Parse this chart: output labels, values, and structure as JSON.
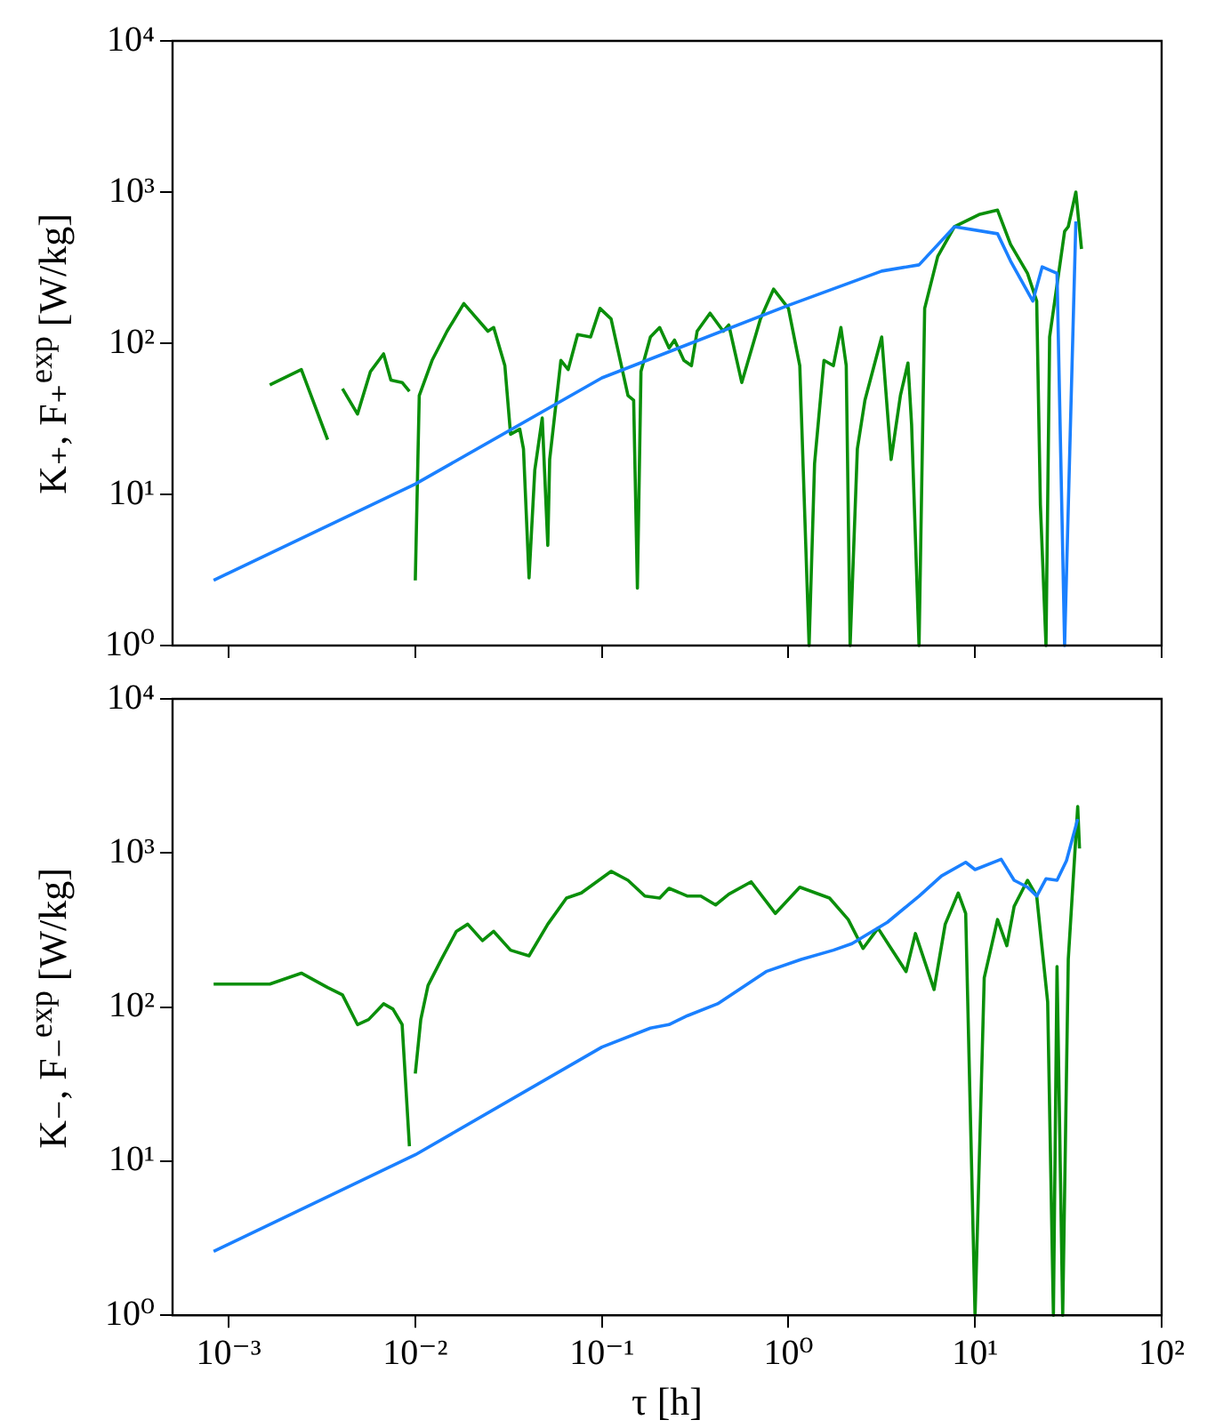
{
  "chart_data": [
    {
      "type": "line",
      "ylabel": "K₊, F₊$^{exp}$ [W/kg]",
      "log": "xy",
      "tick_labels": "y",
      "xlim": [
        0.0005,
        100
      ],
      "xticks": [
        {
          "value": 0.001,
          "label": null
        },
        {
          "value": 0.01,
          "label": null
        },
        {
          "value": 0.1,
          "label": null
        },
        {
          "value": 1,
          "label": null
        },
        {
          "value": 10,
          "label": null
        },
        {
          "value": 100,
          "label": null
        }
      ],
      "ylim": [
        1,
        10000
      ],
      "yticks": [
        {
          "value": 1,
          "label": "10⁰"
        },
        {
          "value": 10,
          "label": "10¹"
        },
        {
          "value": 100,
          "label": "10²"
        },
        {
          "value": 1000,
          "label": "10³"
        },
        {
          "value": 10000,
          "label": "10⁴"
        }
      ],
      "series": [
        {
          "color": "#1a80ff",
          "x": [
            0.00083,
            0.01,
            0.1,
            1,
            3.16,
            5.01,
            7.76,
            13.2,
            15.5,
            20.4,
            22.9,
            27.5,
            30.2,
            34.7
          ],
          "values": [
            2.7,
            11.7,
            59,
            178,
            300,
            330,
            590,
            530,
            350,
            190,
            320,
            290,
            1,
            640
          ]
        },
        {
          "color": "#0a8f0a",
          "x": [
            0.00166,
            0.00245,
            0.00339,
            0.0037,
            0.00407,
            0.0049,
            0.00575,
            0.00676,
            0.0074,
            0.0085,
            0.0093,
            0.0097,
            0.01,
            0.0105,
            0.0123,
            0.0148,
            0.0182,
            0.0245,
            0.0263,
            0.0302,
            0.0324,
            0.0363,
            0.038,
            0.0407,
            0.0437,
            0.0479,
            0.0513,
            0.0525,
            0.0603,
            0.066,
            0.0741,
            0.087,
            0.0977,
            0.112,
            0.138,
            0.148,
            0.155,
            0.162,
            0.182,
            0.204,
            0.229,
            0.245,
            0.275,
            0.302,
            0.324,
            0.38,
            0.447,
            0.479,
            0.562,
            0.708,
            0.832,
            1,
            1.15,
            1.29,
            1.38,
            1.55,
            1.74,
            1.91,
            2.04,
            2.14,
            2.34,
            2.57,
            3.16,
            3.55,
            3.98,
            4.37,
            4.57,
            5.01,
            5.37,
            6.31,
            7.76,
            10.5,
            13.2,
            15.5,
            19.1,
            21.4,
            22.4,
            24,
            25.1,
            30.2,
            31.6,
            34.7,
            37.2
          ],
          "values": [
            53,
            67,
            23,
            null,
            50,
            34,
            65,
            85,
            57,
            55,
            48,
            null,
            2.7,
            45,
            77,
            120,
            183,
            120,
            127,
            71,
            25,
            27,
            20,
            2.8,
            14.5,
            32,
            4.6,
            17,
            77,
            67,
            114,
            110,
            170,
            145,
            45,
            42,
            2.4,
            65,
            110,
            127,
            93,
            105,
            77,
            71,
            120,
            158,
            120,
            132,
            55,
            145,
            228,
            170,
            71,
            1,
            16,
            77,
            71,
            127,
            71,
            1,
            20,
            42,
            110,
            17,
            45,
            74,
            29,
            1,
            170,
            375,
            590,
            710,
            760,
            450,
            290,
            190,
            8.5,
            1,
            110,
            550,
            590,
            1000,
            420
          ]
        }
      ]
    },
    {
      "type": "line",
      "xlabel": "τ [h]",
      "ylabel": "K₋, F₋$^{exp}$ [W/kg]",
      "log": "xy",
      "xlim": [
        0.0005,
        100
      ],
      "xticks": [
        {
          "value": 0.001,
          "label": "10⁻³"
        },
        {
          "value": 0.01,
          "label": "10⁻²"
        },
        {
          "value": 0.1,
          "label": "10⁻¹"
        },
        {
          "value": 1,
          "label": "10⁰"
        },
        {
          "value": 10,
          "label": "10¹"
        },
        {
          "value": 100,
          "label": "10²"
        }
      ],
      "ylim": [
        1,
        10000
      ],
      "yticks": [
        {
          "value": 1,
          "label": "10⁰"
        },
        {
          "value": 10,
          "label": "10¹"
        },
        {
          "value": 100,
          "label": "10²"
        },
        {
          "value": 1000,
          "label": "10³"
        },
        {
          "value": 10000,
          "label": "10⁴"
        }
      ],
      "series": [
        {
          "color": "#1a80ff",
          "x": [
            0.00083,
            0.01,
            0.1,
            0.182,
            0.229,
            0.288,
            0.417,
            0.759,
            1.17,
            1.74,
            2.19,
            3.39,
            5.01,
            6.61,
            8.91,
            10,
            13.8,
            16.2,
            19.1,
            21.4,
            24,
            27.5,
            30.9,
            35.5
          ],
          "values": [
            2.6,
            11,
            55,
            73,
            77,
            88,
            105,
            170,
            204,
            234,
            258,
            355,
            525,
            710,
            870,
            780,
            910,
            665,
            600,
            525,
            680,
            665,
            890,
            1660
          ]
        },
        {
          "color": "#0a8f0a",
          "x": [
            0.00083,
            0.00166,
            0.00245,
            0.00339,
            0.00407,
            0.0049,
            0.00562,
            0.00676,
            0.00759,
            0.0085,
            0.0093,
            0.0097,
            0.01,
            0.0107,
            0.0117,
            0.0138,
            0.0166,
            0.0191,
            0.0229,
            0.0263,
            0.0324,
            0.0407,
            0.0513,
            0.0646,
            0.0776,
            0.112,
            0.138,
            0.17,
            0.204,
            0.229,
            0.288,
            0.339,
            0.407,
            0.479,
            0.631,
            0.851,
            1.15,
            1.66,
            2.09,
            2.51,
            3.02,
            3.55,
            4.27,
            4.79,
            6.03,
            6.92,
            8.13,
            8.91,
            10,
            10.7,
            11.2,
            13.2,
            14.8,
            16.2,
            19.1,
            21.4,
            24.5,
            26.3,
            27.5,
            29.5,
            31.6,
            35.5,
            36.3
          ],
          "values": [
            141,
            141,
            166,
            134,
            120,
            77,
            83,
            105,
            97,
            77,
            12.5,
            null,
            37,
            83,
            138,
            204,
            310,
            345,
            270,
            310,
            234,
            215,
            345,
            510,
            550,
            760,
            665,
            525,
            510,
            590,
            525,
            525,
            460,
            540,
            650,
            405,
            600,
            510,
            370,
            240,
            325,
            240,
            170,
            300,
            130,
            345,
            550,
            405,
            1,
            20,
            155,
            370,
            250,
            450,
            665,
            525,
            108,
            1,
            183,
            1,
            204,
            2000,
            1070
          ]
        }
      ]
    }
  ]
}
